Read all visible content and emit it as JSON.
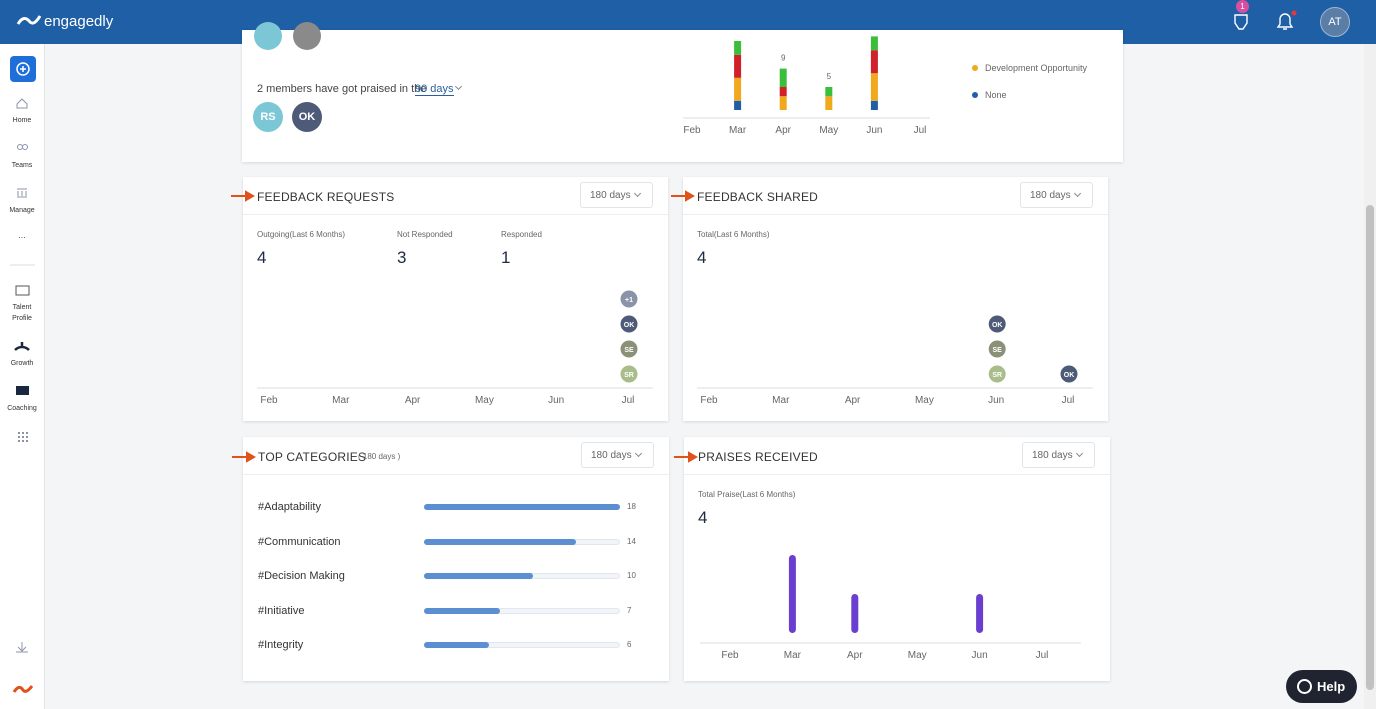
{
  "header": {
    "brand": "engagedly",
    "notification_count": "1",
    "user_initials": "AT"
  },
  "sidebar": {
    "nav": [
      "Home",
      "Teams",
      "Manage",
      "Talent Profile",
      "Growth",
      "Coaching"
    ],
    "more": "..."
  },
  "praise_overview": {
    "sentence": "2 members have got praised in the",
    "period": "90 days",
    "members": [
      {
        "initials": "RS",
        "color": "#7cc7d6"
      },
      {
        "initials": "OK",
        "color": "#4d5a78"
      }
    ],
    "chart": {
      "months": [
        "Feb",
        "Mar",
        "Apr",
        "May",
        "Jun",
        "Jul"
      ],
      "series": [
        {
          "name": "None",
          "color": "#1f5fa8",
          "values": [
            null,
            2,
            0,
            0,
            2,
            null
          ]
        },
        {
          "name": "Development Opportunity",
          "color": "#f0a81c",
          "values": [
            null,
            5,
            3,
            3,
            6,
            null
          ]
        },
        {
          "color": "#d0202a",
          "values": [
            null,
            5,
            2,
            0,
            5,
            null
          ]
        },
        {
          "color": "#3bbf3b",
          "values": [
            null,
            3,
            4,
            2,
            3,
            null
          ]
        }
      ],
      "total_labels": [
        null,
        null,
        9,
        5,
        null,
        null
      ]
    }
  },
  "feedback_requests": {
    "title": "FEEDBACK REQUESTS",
    "period": "180 days",
    "stats": [
      {
        "label": "Outgoing(Last 6 Months)",
        "value": 4
      },
      {
        "label": "Not Responded",
        "value": 3
      },
      {
        "label": "Responded",
        "value": 1
      }
    ],
    "months": [
      "Feb",
      "Mar",
      "Apr",
      "May",
      "Jun",
      "Jul"
    ],
    "avatar_columns": [
      [],
      [],
      [],
      [],
      [],
      [
        {
          "initials": "+1",
          "color": "#8a93a8"
        },
        {
          "initials": "OK",
          "color": "#4d5a78"
        },
        {
          "initials": "SE",
          "color": "#8b9178"
        },
        {
          "initials": "SR",
          "color": "#a8bd8a"
        }
      ]
    ]
  },
  "feedback_shared": {
    "title": "FEEDBACK SHARED",
    "period": "180 days",
    "stats": [
      {
        "label": "Total(Last 6 Months)",
        "value": 4
      }
    ],
    "months": [
      "Feb",
      "Mar",
      "Apr",
      "May",
      "Jun",
      "Jul"
    ],
    "avatar_columns": [
      [],
      [],
      [],
      [],
      [
        {
          "initials": "OK",
          "color": "#4d5a78"
        },
        {
          "initials": "SE",
          "color": "#8b9178"
        },
        {
          "initials": "SR",
          "color": "#a8bd8a"
        }
      ],
      [
        {
          "initials": "OK",
          "color": "#4d5a78"
        }
      ]
    ]
  },
  "top_categories": {
    "title": "TOP CATEGORIES",
    "subtitle": "( 180 days )",
    "period": "180 days",
    "bar_color": "#5b8fd1",
    "items": [
      {
        "name": "#Adaptability",
        "value": 18
      },
      {
        "name": "#Communication",
        "value": 14
      },
      {
        "name": "#Decision Making",
        "value": 10
      },
      {
        "name": "#Initiative",
        "value": 7
      },
      {
        "name": "#Integrity",
        "value": 6
      }
    ]
  },
  "praises_received": {
    "title": "PRAISES RECEIVED",
    "period": "180 days",
    "stats": [
      {
        "label": "Total Praise(Last 6 Months)",
        "value": 4
      }
    ],
    "months": [
      "Feb",
      "Mar",
      "Apr",
      "May",
      "Jun",
      "Jul"
    ],
    "values": [
      0,
      2,
      1,
      0,
      1,
      0
    ],
    "bar_color": "#6a3fd0"
  },
  "help": "Help"
}
